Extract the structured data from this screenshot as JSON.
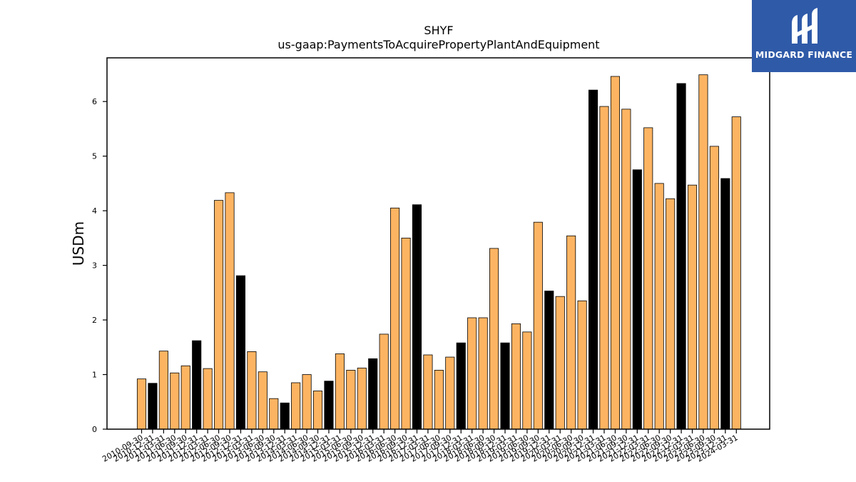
{
  "chart_data": {
    "type": "bar",
    "title": "SHYF",
    "subtitle": "us-gaap:PaymentsToAcquirePropertyPlantAndEquipment",
    "ylabel": "USDm",
    "xlabel": "",
    "ylim": [
      0,
      6.8
    ],
    "yticks": [
      0,
      1,
      2,
      3,
      4,
      5,
      6
    ],
    "grid": false,
    "colors": {
      "quarter": "#FDB462",
      "fiscal_year_end": "#000000",
      "edge": "#000000"
    },
    "categories": [
      "2010-09-30",
      "2010-12-31",
      "2011-03-31",
      "2011-06-30",
      "2011-09-30",
      "2011-12-31",
      "2012-03-31",
      "2012-06-30",
      "2012-09-30",
      "2012-12-31",
      "2013-03-31",
      "2013-06-30",
      "2013-09-30",
      "2013-12-31",
      "2014-03-31",
      "2014-06-30",
      "2014-09-30",
      "2014-12-31",
      "2015-03-31",
      "2015-06-30",
      "2015-09-30",
      "2015-12-31",
      "2016-03-31",
      "2016-06-30",
      "2016-09-30",
      "2016-12-31",
      "2017-03-31",
      "2017-06-30",
      "2017-09-30",
      "2017-12-31",
      "2018-03-31",
      "2018-06-30",
      "2018-09-30",
      "2018-12-31",
      "2019-03-31",
      "2019-06-30",
      "2019-09-30",
      "2019-12-31",
      "2020-03-31",
      "2020-06-30",
      "2020-09-30",
      "2020-12-31",
      "2021-03-31",
      "2021-06-30",
      "2021-09-30",
      "2021-12-31",
      "2022-03-31",
      "2022-06-30",
      "2022-09-30",
      "2022-12-31",
      "2023-03-31",
      "2023-06-30",
      "2023-09-30",
      "2023-12-31",
      "2024-03-31"
    ],
    "values": [
      0.92,
      0.84,
      1.43,
      1.03,
      1.16,
      1.62,
      1.11,
      4.19,
      4.33,
      2.81,
      1.42,
      1.05,
      0.56,
      0.48,
      0.85,
      1.0,
      0.7,
      0.88,
      1.38,
      1.08,
      1.12,
      1.29,
      1.74,
      4.05,
      3.5,
      4.11,
      1.36,
      1.08,
      1.32,
      1.58,
      2.04,
      2.04,
      3.31,
      1.58,
      1.93,
      1.78,
      3.79,
      2.53,
      2.43,
      3.54,
      2.35,
      6.21,
      5.91,
      6.46,
      5.86,
      4.75,
      5.52,
      4.5,
      4.22,
      6.33,
      4.47,
      6.49,
      5.18,
      4.59,
      5.72
    ],
    "highlight": [
      false,
      true,
      false,
      false,
      false,
      true,
      false,
      false,
      false,
      true,
      false,
      false,
      false,
      true,
      false,
      false,
      false,
      true,
      false,
      false,
      false,
      true,
      false,
      false,
      false,
      true,
      false,
      false,
      false,
      true,
      false,
      false,
      false,
      true,
      false,
      false,
      false,
      true,
      false,
      false,
      false,
      true,
      false,
      false,
      false,
      true,
      false,
      false,
      false,
      true,
      false,
      false,
      false,
      true,
      false
    ]
  },
  "logo": {
    "text": "MIDGARD FINANCE"
  }
}
